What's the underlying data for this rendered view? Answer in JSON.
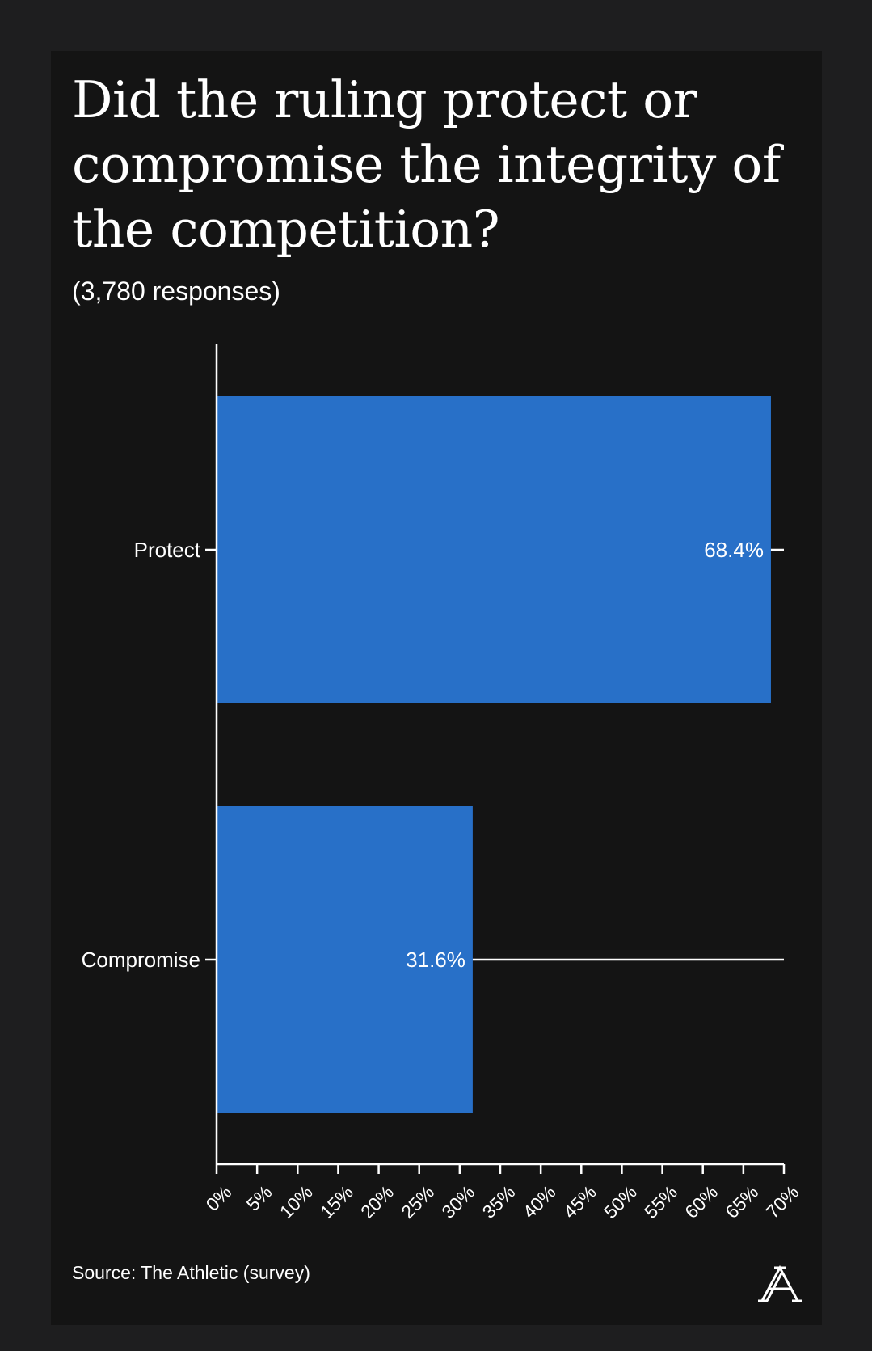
{
  "title": "Did the ruling protect or compromise the integrity of the competition?",
  "subtitle": "(3,780 responses)",
  "source": "Source: The Athletic (survey)",
  "colors": {
    "background": "#1e1e1f",
    "card": "#141414",
    "bar": "#2870c8",
    "axis": "#ffffff",
    "text": "#ffffff"
  },
  "logo_icon": "athletic-a-logo",
  "chart_data": {
    "type": "bar",
    "orientation": "horizontal",
    "categories": [
      "Protect",
      "Compromise"
    ],
    "values": [
      68.4,
      31.6
    ],
    "value_labels": [
      "68.4%",
      "31.6%"
    ],
    "xlim": [
      0,
      70
    ],
    "x_ticks": [
      0,
      5,
      10,
      15,
      20,
      25,
      30,
      35,
      40,
      45,
      50,
      55,
      60,
      65,
      70
    ],
    "x_tick_labels": [
      "0%",
      "5%",
      "10%",
      "15%",
      "20%",
      "25%",
      "30%",
      "35%",
      "40%",
      "45%",
      "50%",
      "55%",
      "60%",
      "65%",
      "70%"
    ],
    "grid": false,
    "legend": "none"
  }
}
